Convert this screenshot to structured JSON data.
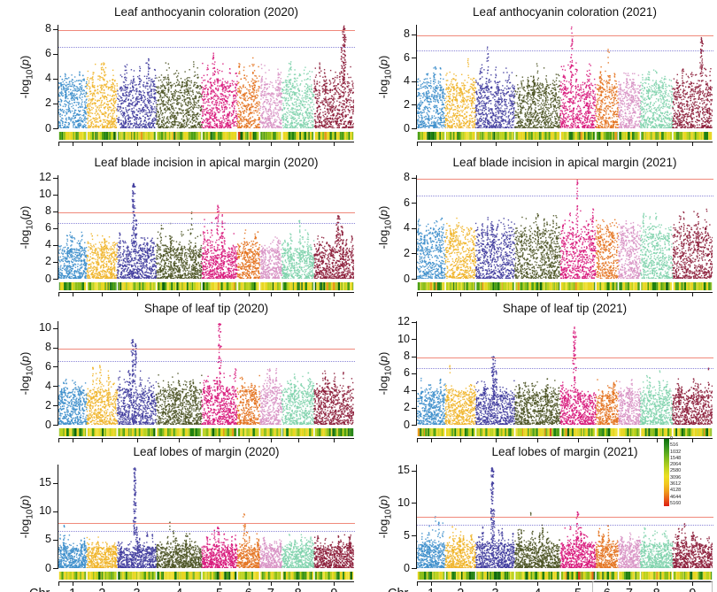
{
  "chart_data": {
    "type": "scatter-manhattan-grid",
    "description": "Eight GWAS Manhattan plots (4 rows x 2 columns) of -log10(p) across 9 chromosomes, with SNP-density strips under each plot",
    "axis": {
      "ylabel_pre": "-log",
      "ylabel_sub": "10",
      "ylabel_open": "(",
      "ylabel_var": "p",
      "ylabel_close": ")",
      "chr_prefix": "Chr",
      "chromosomes": [
        "1",
        "2",
        "3",
        "4",
        "5",
        "6",
        "7",
        "8",
        "9"
      ]
    },
    "thresholds": {
      "significant": 7.9,
      "suggestive": 6.6,
      "significant_color": "#f0897b",
      "suggestive_color": "#8b86d8"
    },
    "chr_colors": [
      "#3d8ecb",
      "#f0b429",
      "#413d9e",
      "#4c5424",
      "#d8197c",
      "#e4731f",
      "#d892c4",
      "#80d2ad",
      "#8c1d39"
    ],
    "chr_width_fracs": [
      0.096,
      0.103,
      0.132,
      0.154,
      0.12,
      0.076,
      0.075,
      0.109,
      0.135
    ],
    "density_legend": {
      "labels": [
        "0",
        "516",
        "1032",
        "1548",
        "2064",
        "2580",
        "3096",
        "3612",
        "4128",
        "4644",
        "5160"
      ],
      "gradient": [
        "#0b6e0b",
        "#2f8f1e",
        "#5fae1d",
        "#94c31d",
        "#c4d51f",
        "#ecdf22",
        "#f2c81f",
        "#ef9e1c",
        "#e95f1a",
        "#dc1d12"
      ]
    },
    "plots": [
      {
        "title": "Leaf anthocyanin coloration (2020)",
        "ymax": 8.35,
        "yticks": [
          0,
          2,
          4,
          6,
          8
        ],
        "noise_max": [
          4.3,
          5.6,
          5.5,
          5.4,
          5.9,
          5.8,
          5.1,
          5.3,
          5.0
        ],
        "peaks": [
          {
            "chr": 9,
            "pos": 0.75,
            "top": 8.25,
            "n": 80,
            "spread": 2.0
          },
          {
            "chr": 9,
            "pos": 0.68,
            "top": 6.5,
            "n": 15,
            "spread": 1.2
          },
          {
            "chr": 5,
            "pos": 0.33,
            "top": 6.05,
            "n": 10,
            "spread": 1.0
          },
          {
            "chr": 3,
            "pos": 0.8,
            "top": 5.6,
            "n": 8,
            "spread": 1.0
          }
        ]
      },
      {
        "title": "Leaf anthocyanin coloration (2021)",
        "ymax": 8.8,
        "yticks": [
          0,
          2,
          4,
          6,
          8
        ],
        "noise_max": [
          5.3,
          5.2,
          5.3,
          5.2,
          5.5,
          5.0,
          4.9,
          5.0,
          5.2
        ],
        "peaks": [
          {
            "chr": 5,
            "pos": 0.32,
            "top": 8.6,
            "n": 35,
            "spread": 1.5
          },
          {
            "chr": 9,
            "pos": 0.72,
            "top": 7.7,
            "n": 45,
            "spread": 2.0
          },
          {
            "chr": 3,
            "pos": 0.3,
            "top": 6.9,
            "n": 10,
            "spread": 1.4
          },
          {
            "chr": 6,
            "pos": 0.55,
            "top": 6.7,
            "n": 4,
            "spread": 1.0
          },
          {
            "chr": 2,
            "pos": 0.75,
            "top": 5.9,
            "n": 4,
            "spread": 1.0
          }
        ]
      },
      {
        "title": "Leaf blade incision in apical margin (2020)",
        "ymax": 12.3,
        "yticks": [
          0,
          2,
          4,
          6,
          8,
          10,
          12
        ],
        "noise_max": [
          5.6,
          5.2,
          5.8,
          6.4,
          6.8,
          5.8,
          5.0,
          6.0,
          5.6
        ],
        "peaks": [
          {
            "chr": 3,
            "pos": 0.42,
            "top": 11.3,
            "n": 80,
            "spread": 2.0
          },
          {
            "chr": 3,
            "pos": 0.48,
            "top": 7.0,
            "n": 15,
            "spread": 1.4
          },
          {
            "chr": 5,
            "pos": 0.45,
            "top": 8.7,
            "n": 30,
            "spread": 2.4
          },
          {
            "chr": 5,
            "pos": 0.58,
            "top": 7.6,
            "n": 15,
            "spread": 1.6
          },
          {
            "chr": 9,
            "pos": 0.6,
            "top": 7.5,
            "n": 35,
            "spread": 2.2
          },
          {
            "chr": 9,
            "pos": 0.7,
            "top": 6.2,
            "n": 10,
            "spread": 1.2
          },
          {
            "chr": 4,
            "pos": 0.78,
            "top": 7.9,
            "n": 3,
            "spread": 0.8
          },
          {
            "chr": 8,
            "pos": 0.55,
            "top": 6.9,
            "n": 6,
            "spread": 1.0
          }
        ]
      },
      {
        "title": "Leaf blade incision in apical margin (2021)",
        "ymax": 8.2,
        "yticks": [
          0,
          2,
          4,
          6,
          8
        ],
        "noise_max": [
          4.8,
          4.6,
          4.9,
          5.1,
          5.4,
          4.7,
          4.4,
          5.0,
          5.6
        ],
        "peaks": [
          {
            "chr": 5,
            "pos": 0.48,
            "top": 7.8,
            "n": 22,
            "spread": 1.2
          },
          {
            "chr": 8,
            "pos": 0.3,
            "top": 4.9,
            "n": 3,
            "spread": 0.8
          },
          {
            "chr": 9,
            "pos": 0.85,
            "top": 5.5,
            "n": 2,
            "spread": 0.6
          }
        ]
      },
      {
        "title": "Shape of leaf tip (2020)",
        "ymax": 10.7,
        "yticks": [
          0,
          2,
          4,
          6,
          8,
          10
        ],
        "noise_max": [
          4.7,
          5.9,
          5.5,
          5.2,
          5.8,
          5.2,
          5.7,
          5.1,
          5.4
        ],
        "peaks": [
          {
            "chr": 3,
            "pos": 0.4,
            "top": 8.8,
            "n": 45,
            "spread": 1.8
          },
          {
            "chr": 3,
            "pos": 0.47,
            "top": 8.35,
            "n": 30,
            "spread": 1.5
          },
          {
            "chr": 5,
            "pos": 0.5,
            "top": 10.45,
            "n": 50,
            "spread": 1.8
          },
          {
            "chr": 7,
            "pos": 0.45,
            "top": 5.75,
            "n": 12,
            "spread": 1.0
          },
          {
            "chr": 2,
            "pos": 0.2,
            "top": 5.9,
            "n": 6,
            "spread": 1.0
          }
        ]
      },
      {
        "title": "Shape of leaf tip (2021)",
        "ymax": 12.1,
        "yticks": [
          0,
          2,
          4,
          6,
          8,
          10,
          12
        ],
        "noise_max": [
          5.2,
          5.0,
          5.3,
          5.2,
          5.1,
          5.4,
          5.3,
          5.6,
          5.5
        ],
        "peaks": [
          {
            "chr": 3,
            "pos": 0.45,
            "top": 7.95,
            "n": 50,
            "spread": 2.0
          },
          {
            "chr": 3,
            "pos": 0.52,
            "top": 6.3,
            "n": 15,
            "spread": 1.4
          },
          {
            "chr": 5,
            "pos": 0.4,
            "top": 11.4,
            "n": 60,
            "spread": 1.8
          },
          {
            "chr": 2,
            "pos": 0.15,
            "top": 6.9,
            "n": 2,
            "spread": 0.6
          },
          {
            "chr": 9,
            "pos": 0.9,
            "top": 6.6,
            "n": 3,
            "spread": 0.8
          },
          {
            "chr": 8,
            "pos": 0.6,
            "top": 6.3,
            "n": 2,
            "spread": 0.6
          }
        ]
      },
      {
        "title": "Leaf lobes of margin (2020)",
        "ymax": 18.2,
        "yticks": [
          0,
          5,
          10,
          15
        ],
        "noise_max": [
          6.3,
          5.4,
          6.0,
          6.6,
          6.8,
          6.4,
          5.5,
          6.1,
          6.3
        ],
        "peaks": [
          {
            "chr": 3,
            "pos": 0.45,
            "top": 17.6,
            "n": 80,
            "spread": 1.6
          },
          {
            "chr": 3,
            "pos": 0.5,
            "top": 7.2,
            "n": 10,
            "spread": 1.2
          },
          {
            "chr": 6,
            "pos": 0.3,
            "top": 9.5,
            "n": 6,
            "spread": 1.2
          },
          {
            "chr": 6,
            "pos": 0.35,
            "top": 7.8,
            "n": 8,
            "spread": 1.2
          },
          {
            "chr": 1,
            "pos": 0.2,
            "top": 7.5,
            "n": 5,
            "spread": 1.0
          },
          {
            "chr": 4,
            "pos": 0.3,
            "top": 8.05,
            "n": 2,
            "spread": 0.6
          },
          {
            "chr": 5,
            "pos": 0.45,
            "top": 7.2,
            "n": 6,
            "spread": 1.2
          }
        ]
      },
      {
        "title": "Leaf lobes of margin (2021)",
        "ymax": 15.9,
        "yticks": [
          0,
          5,
          10,
          15
        ],
        "noise_max": [
          7.0,
          6.3,
          6.6,
          6.9,
          7.0,
          6.3,
          5.3,
          6.3,
          6.5
        ],
        "peaks": [
          {
            "chr": 3,
            "pos": 0.42,
            "top": 15.4,
            "n": 90,
            "spread": 1.8
          },
          {
            "chr": 3,
            "pos": 0.46,
            "top": 9.0,
            "n": 20,
            "spread": 1.4
          },
          {
            "chr": 5,
            "pos": 0.48,
            "top": 8.6,
            "n": 20,
            "spread": 2.0
          },
          {
            "chr": 1,
            "pos": 0.65,
            "top": 7.9,
            "n": 4,
            "spread": 0.8
          },
          {
            "chr": 4,
            "pos": 0.35,
            "top": 8.5,
            "n": 2,
            "spread": 0.6
          },
          {
            "chr": 9,
            "pos": 0.3,
            "top": 6.8,
            "n": 4,
            "spread": 0.8
          }
        ]
      }
    ]
  }
}
